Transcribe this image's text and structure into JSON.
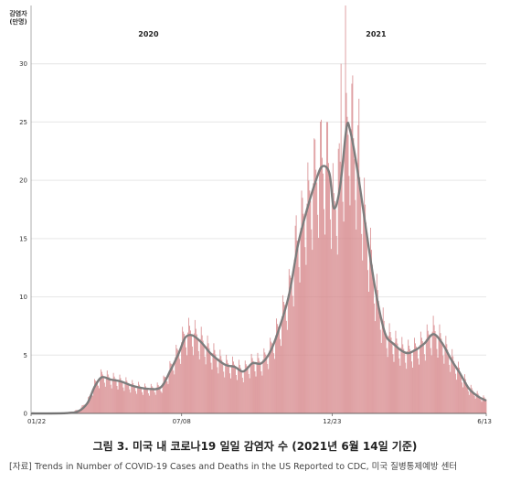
{
  "caption": "그림 3. 미국 내 코로나19 일일 감염자 수 (2021년 6월 14일 기준)",
  "source": "[자료] Trends in Number of COVID-19 Cases and Deaths in the US Reported to CDC, 미국 질병통제예방 센터",
  "chart_data": {
    "type": "bar",
    "ylabel": "감염자\n(만명)",
    "ylim": [
      0,
      35
    ],
    "yticks": [
      0,
      5,
      10,
      15,
      20,
      25,
      30
    ],
    "xlim": [
      "2020-01-22",
      "2021-06-13"
    ],
    "xticks": [
      {
        "date": "2020-01-22",
        "label": "01/22"
      },
      {
        "date": "2020-07-08",
        "label": "07/08"
      },
      {
        "date": "2020-12-23",
        "label": "12/23"
      },
      {
        "date": "2021-06-13",
        "label": "6/13"
      }
    ],
    "year_labels": [
      {
        "date": "2020-06-01",
        "label": "2020"
      },
      {
        "date": "2021-02-10",
        "label": "2021"
      }
    ],
    "grid": true,
    "series": [
      {
        "kind": "daily-bars",
        "color": "#d58286",
        "points": [
          [
            "2020-01-22",
            0
          ],
          [
            "2020-03-01",
            0.05
          ],
          [
            "2020-03-15",
            0.3
          ],
          [
            "2020-03-25",
            1.0
          ],
          [
            "2020-04-02",
            2.5
          ],
          [
            "2020-04-10",
            3.3
          ],
          [
            "2020-04-20",
            3.0
          ],
          [
            "2020-05-01",
            2.8
          ],
          [
            "2020-05-15",
            2.4
          ],
          [
            "2020-06-01",
            2.1
          ],
          [
            "2020-06-15",
            2.3
          ],
          [
            "2020-06-25",
            3.8
          ],
          [
            "2020-07-05",
            5.5
          ],
          [
            "2020-07-12",
            6.9
          ],
          [
            "2020-07-20",
            7.0
          ],
          [
            "2020-07-30",
            6.3
          ],
          [
            "2020-08-10",
            5.3
          ],
          [
            "2020-08-25",
            4.3
          ],
          [
            "2020-09-05",
            4.1
          ],
          [
            "2020-09-15",
            3.7
          ],
          [
            "2020-09-25",
            4.4
          ],
          [
            "2020-10-05",
            4.4
          ],
          [
            "2020-10-15",
            5.5
          ],
          [
            "2020-10-25",
            7.5
          ],
          [
            "2020-11-05",
            10.5
          ],
          [
            "2020-11-15",
            15.0
          ],
          [
            "2020-11-25",
            18.0
          ],
          [
            "2020-12-05",
            20.5
          ],
          [
            "2020-12-12",
            21.5
          ],
          [
            "2020-12-20",
            21.0
          ],
          [
            "2020-12-25",
            17.5
          ],
          [
            "2021-01-01",
            20.0
          ],
          [
            "2021-01-08",
            25.0
          ],
          [
            "2021-01-12",
            24.8
          ],
          [
            "2021-01-20",
            21.5
          ],
          [
            "2021-01-31",
            15.5
          ],
          [
            "2021-02-10",
            10.5
          ],
          [
            "2021-02-20",
            7.0
          ],
          [
            "2021-03-01",
            6.2
          ],
          [
            "2021-03-15",
            5.3
          ],
          [
            "2021-03-25",
            5.5
          ],
          [
            "2021-04-05",
            6.2
          ],
          [
            "2021-04-15",
            7.1
          ],
          [
            "2021-04-25",
            6.2
          ],
          [
            "2021-05-05",
            4.8
          ],
          [
            "2021-05-15",
            3.5
          ],
          [
            "2021-05-25",
            2.2
          ],
          [
            "2021-06-05",
            1.5
          ],
          [
            "2021-06-13",
            1.2
          ]
        ],
        "spikes": [
          [
            "2020-12-11",
            25.2
          ],
          [
            "2020-12-18",
            25.0
          ],
          [
            "2020-12-30",
            22.7
          ],
          [
            "2021-01-02",
            30.0
          ],
          [
            "2021-01-07",
            35.0
          ],
          [
            "2021-01-08",
            27.5
          ],
          [
            "2021-01-15",
            29.0
          ],
          [
            "2021-01-22",
            27.0
          ],
          [
            "2020-11-20",
            18.5
          ],
          [
            "2020-11-13",
            17.0
          ],
          [
            "2020-12-04",
            23.5
          ]
        ]
      },
      {
        "kind": "7-day-average",
        "color": "#7d7d7d",
        "points": [
          [
            "2020-01-22",
            0
          ],
          [
            "2020-03-01",
            0.02
          ],
          [
            "2020-03-15",
            0.2
          ],
          [
            "2020-03-25",
            0.9
          ],
          [
            "2020-04-02",
            2.3
          ],
          [
            "2020-04-10",
            3.1
          ],
          [
            "2020-04-20",
            2.9
          ],
          [
            "2020-05-01",
            2.75
          ],
          [
            "2020-05-15",
            2.35
          ],
          [
            "2020-06-01",
            2.1
          ],
          [
            "2020-06-15",
            2.25
          ],
          [
            "2020-06-25",
            3.6
          ],
          [
            "2020-07-05",
            5.2
          ],
          [
            "2020-07-12",
            6.5
          ],
          [
            "2020-07-20",
            6.7
          ],
          [
            "2020-07-30",
            6.1
          ],
          [
            "2020-08-10",
            5.1
          ],
          [
            "2020-08-25",
            4.2
          ],
          [
            "2020-09-05",
            4.0
          ],
          [
            "2020-09-15",
            3.6
          ],
          [
            "2020-09-25",
            4.3
          ],
          [
            "2020-10-05",
            4.3
          ],
          [
            "2020-10-15",
            5.3
          ],
          [
            "2020-10-25",
            7.3
          ],
          [
            "2020-11-05",
            10.2
          ],
          [
            "2020-11-15",
            14.5
          ],
          [
            "2020-11-25",
            17.5
          ],
          [
            "2020-12-05",
            20.0
          ],
          [
            "2020-12-12",
            21.2
          ],
          [
            "2020-12-20",
            20.6
          ],
          [
            "2020-12-25",
            17.6
          ],
          [
            "2021-01-01",
            19.5
          ],
          [
            "2021-01-08",
            24.5
          ],
          [
            "2021-01-12",
            24.3
          ],
          [
            "2021-01-20",
            21.0
          ],
          [
            "2021-01-31",
            15.2
          ],
          [
            "2021-02-10",
            10.3
          ],
          [
            "2021-02-20",
            6.9
          ],
          [
            "2021-03-01",
            6.0
          ],
          [
            "2021-03-15",
            5.2
          ],
          [
            "2021-03-25",
            5.4
          ],
          [
            "2021-04-05",
            6.0
          ],
          [
            "2021-04-15",
            6.8
          ],
          [
            "2021-04-25",
            6.0
          ],
          [
            "2021-05-05",
            4.6
          ],
          [
            "2021-05-15",
            3.4
          ],
          [
            "2021-05-25",
            2.1
          ],
          [
            "2021-06-05",
            1.4
          ],
          [
            "2021-06-13",
            1.1
          ]
        ]
      }
    ]
  }
}
